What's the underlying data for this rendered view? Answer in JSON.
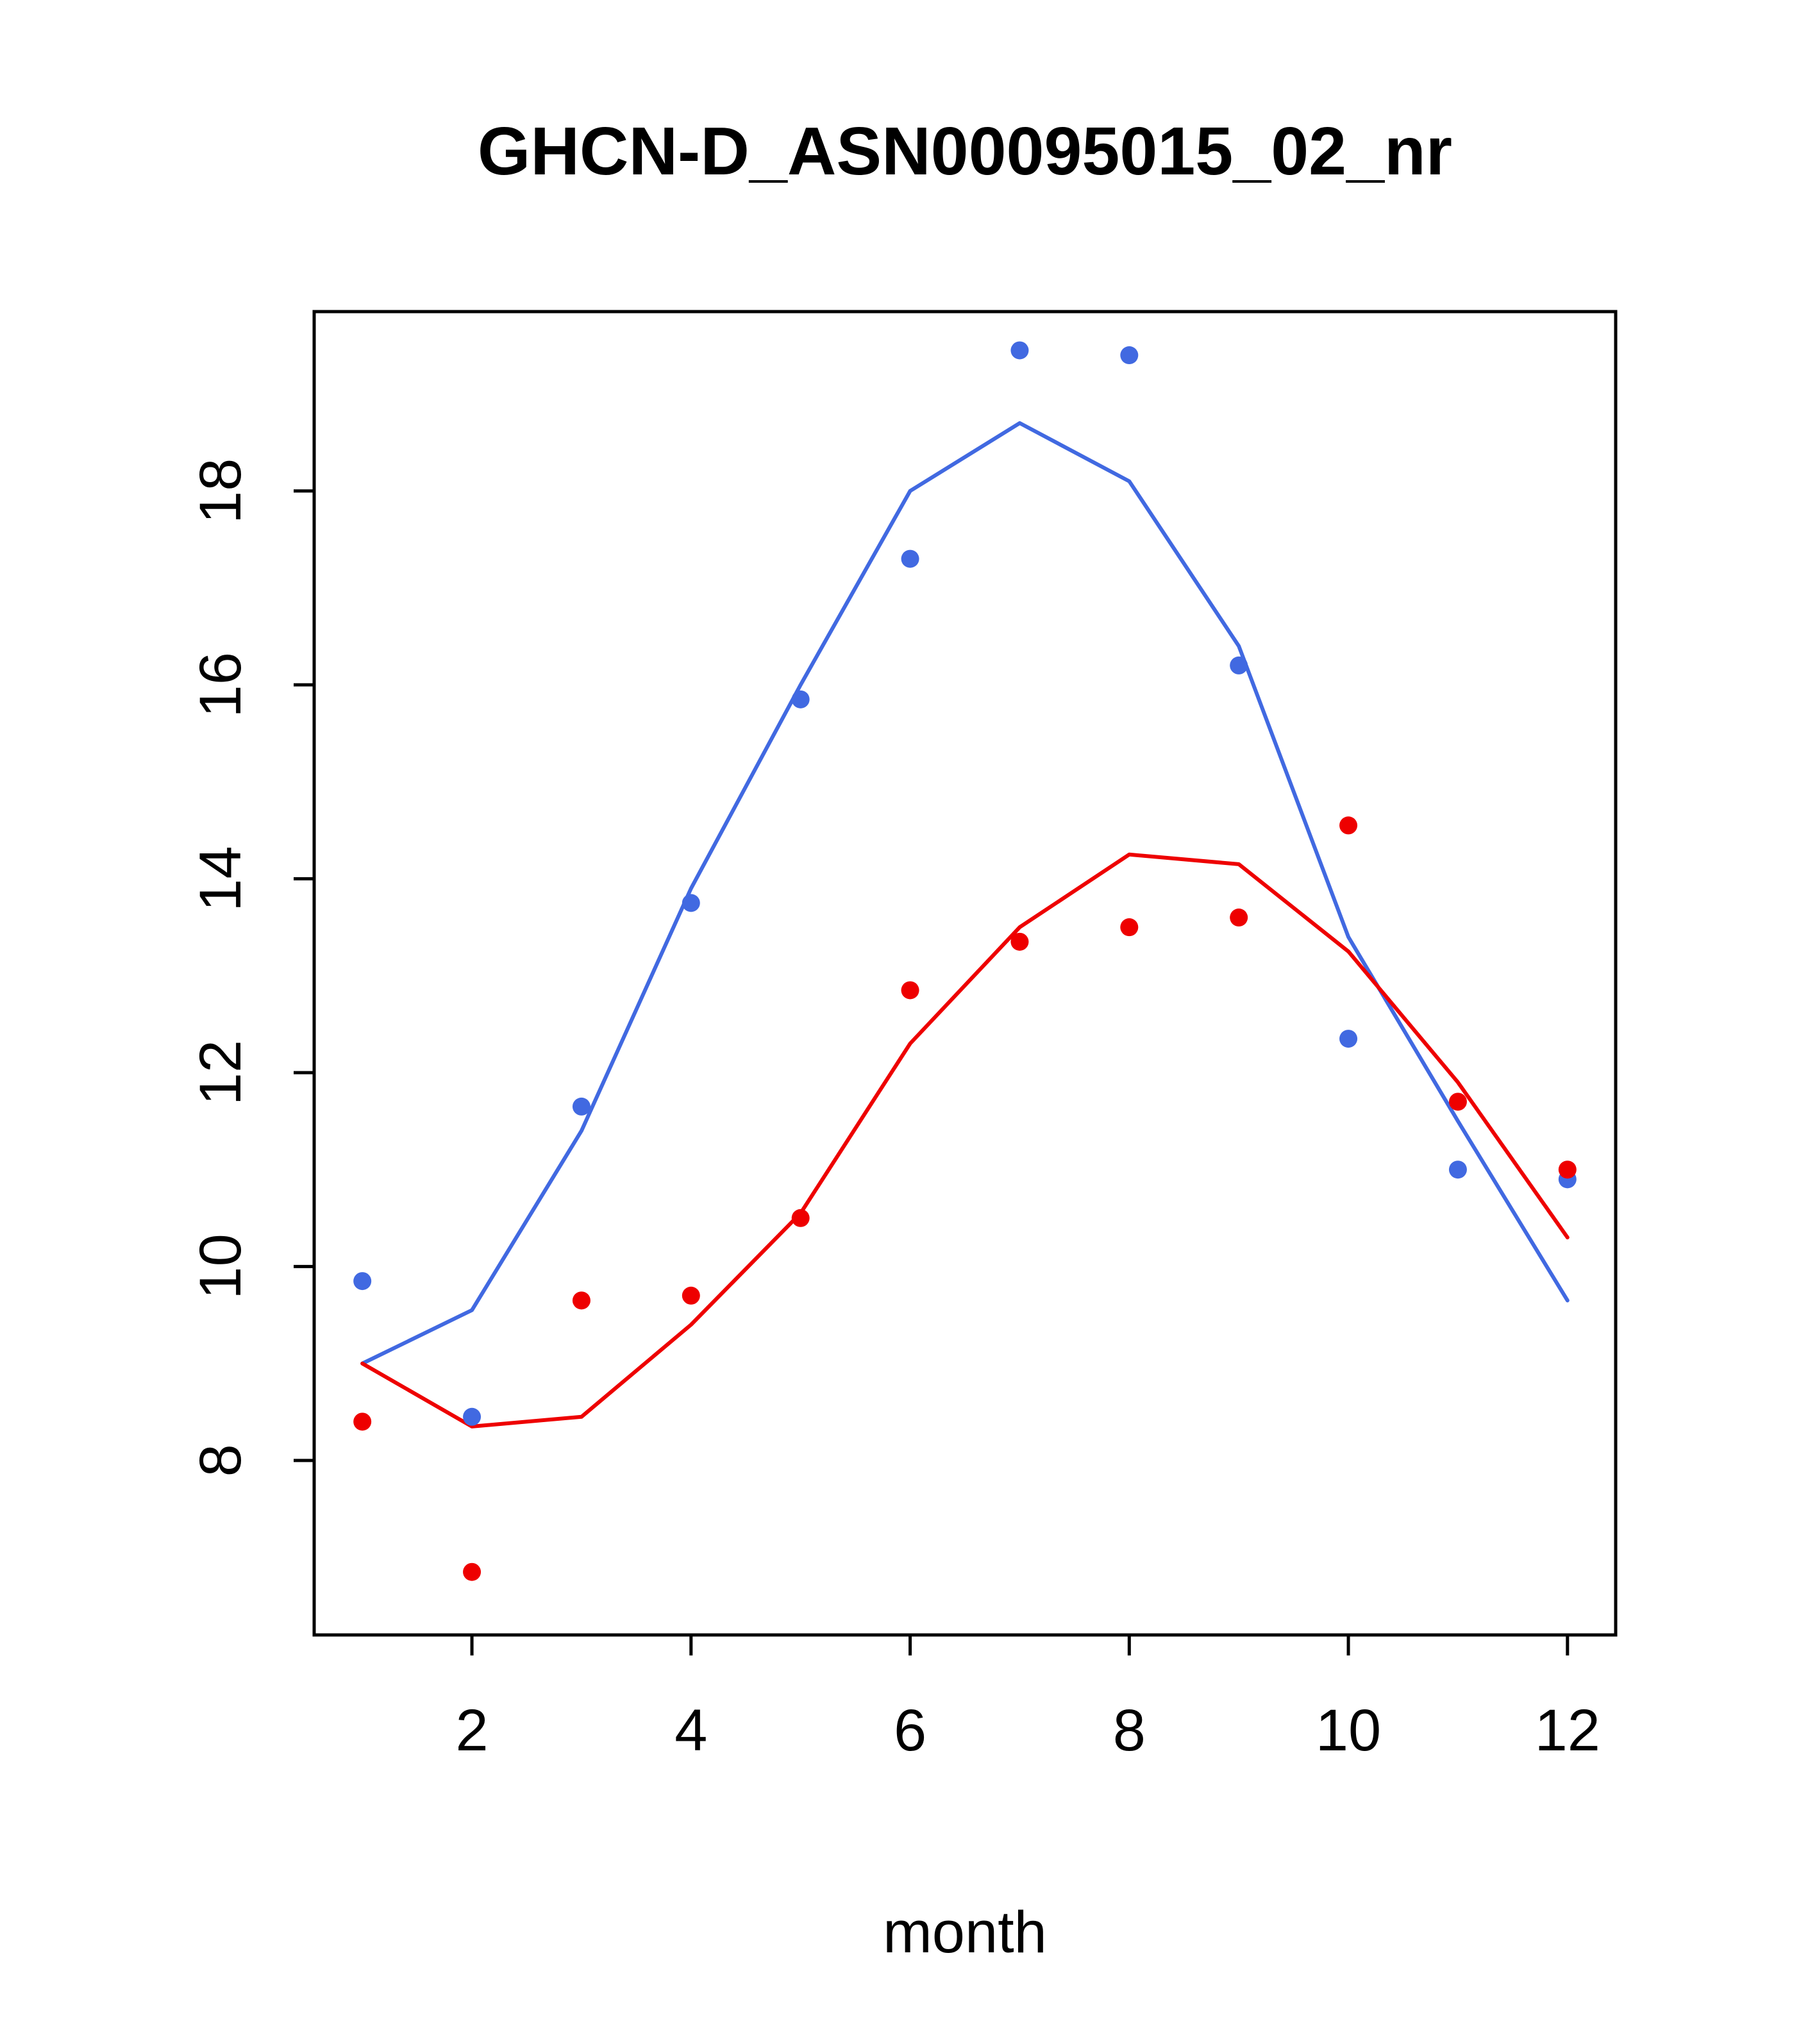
{
  "title": "GHCN-D_ASN00095015_02_nr",
  "chart_data": {
    "type": "line",
    "title": "GHCN-D_ASN00095015_02_nr",
    "xlabel": "month",
    "ylabel": "",
    "x": [
      1,
      2,
      3,
      4,
      5,
      6,
      7,
      8,
      9,
      10,
      11,
      12
    ],
    "xticks": [
      2,
      4,
      6,
      8,
      10,
      12
    ],
    "yticks": [
      8,
      10,
      12,
      14,
      16,
      18
    ],
    "xlim": [
      0.56,
      12.44
    ],
    "ylim": [
      6.2,
      19.85
    ],
    "grid": false,
    "legend": "none",
    "colors": {
      "blue": "#4169E1",
      "red": "#EE0000",
      "axis": "#000000"
    },
    "series": [
      {
        "name": "blue-line",
        "style": "line",
        "color": "#4169E1",
        "values": [
          9.0,
          9.55,
          11.4,
          13.9,
          16.0,
          18.0,
          18.7,
          18.1,
          16.4,
          13.4,
          11.5,
          9.65
        ]
      },
      {
        "name": "red-line",
        "style": "line",
        "color": "#EE0000",
        "values": [
          9.0,
          8.35,
          8.45,
          9.4,
          10.55,
          12.3,
          13.5,
          14.25,
          14.15,
          13.25,
          11.9,
          10.3
        ]
      },
      {
        "name": "blue-points",
        "style": "points",
        "color": "#4169E1",
        "values": [
          9.85,
          8.45,
          11.65,
          13.75,
          15.85,
          17.3,
          19.45,
          19.4,
          16.2,
          12.35,
          11.0,
          10.9
        ]
      },
      {
        "name": "red-points",
        "style": "points",
        "color": "#EE0000",
        "values": [
          8.4,
          6.85,
          9.65,
          9.7,
          10.5,
          12.85,
          13.35,
          13.5,
          13.6,
          14.55,
          11.7,
          11.0
        ]
      }
    ]
  }
}
